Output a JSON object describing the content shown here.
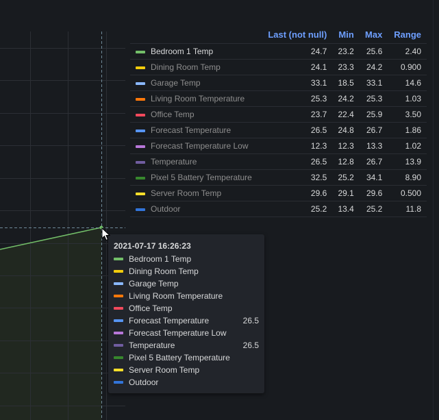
{
  "legend": {
    "headers": {
      "name": "",
      "last": "Last (not null)",
      "min": "Min",
      "max": "Max",
      "range": "Range"
    },
    "rows": [
      {
        "name": "Bedroom 1 Temp",
        "color": "#73bf69",
        "last": "24.7",
        "min": "23.2",
        "max": "25.6",
        "range": "2.40",
        "active": true
      },
      {
        "name": "Dining Room Temp",
        "color": "#f2cc0c",
        "last": "24.1",
        "min": "23.3",
        "max": "24.2",
        "range": "0.900",
        "active": false
      },
      {
        "name": "Garage Temp",
        "color": "#8ab8ff",
        "last": "33.1",
        "min": "18.5",
        "max": "33.1",
        "range": "14.6",
        "active": false
      },
      {
        "name": "Living Room Temperature",
        "color": "#ff780a",
        "last": "25.3",
        "min": "24.2",
        "max": "25.3",
        "range": "1.03",
        "active": false
      },
      {
        "name": "Office Temp",
        "color": "#f2495c",
        "last": "23.7",
        "min": "22.4",
        "max": "25.9",
        "range": "3.50",
        "active": false
      },
      {
        "name": "Forecast Temperature",
        "color": "#5794f2",
        "last": "26.5",
        "min": "24.8",
        "max": "26.7",
        "range": "1.86",
        "active": false
      },
      {
        "name": "Forecast Temperature Low",
        "color": "#b877d9",
        "last": "12.3",
        "min": "12.3",
        "max": "13.3",
        "range": "1.02",
        "active": false
      },
      {
        "name": "Temperature",
        "color": "#705da0",
        "last": "26.5",
        "min": "12.8",
        "max": "26.7",
        "range": "13.9",
        "active": false
      },
      {
        "name": "Pixel 5 Battery Temperature",
        "color": "#37872d",
        "last": "32.5",
        "min": "25.2",
        "max": "34.1",
        "range": "8.90",
        "active": false
      },
      {
        "name": "Server Room Temp",
        "color": "#fade2a",
        "last": "29.6",
        "min": "29.1",
        "max": "29.6",
        "range": "0.500",
        "active": false
      },
      {
        "name": "Outdoor",
        "color": "#3274d9",
        "last": "25.2",
        "min": "13.4",
        "max": "25.2",
        "range": "11.8",
        "active": false
      }
    ]
  },
  "tooltip": {
    "timestamp": "2021-07-17 16:26:23",
    "rows": [
      {
        "name": "Bedroom 1 Temp",
        "color": "#73bf69",
        "value": ""
      },
      {
        "name": "Dining Room Temp",
        "color": "#f2cc0c",
        "value": ""
      },
      {
        "name": "Garage Temp",
        "color": "#8ab8ff",
        "value": ""
      },
      {
        "name": "Living Room Temperature",
        "color": "#ff780a",
        "value": ""
      },
      {
        "name": "Office Temp",
        "color": "#f2495c",
        "value": ""
      },
      {
        "name": "Forecast Temperature",
        "color": "#5794f2",
        "value": "26.5"
      },
      {
        "name": "Forecast Temperature Low",
        "color": "#b877d9",
        "value": ""
      },
      {
        "name": "Temperature",
        "color": "#705da0",
        "value": "26.5"
      },
      {
        "name": "Pixel 5 Battery Temperature",
        "color": "#37872d",
        "value": ""
      },
      {
        "name": "Server Room Temp",
        "color": "#fade2a",
        "value": ""
      },
      {
        "name": "Outdoor",
        "color": "#3274d9",
        "value": ""
      }
    ]
  },
  "chart_data": {
    "type": "line",
    "title": "",
    "xlabel": "",
    "ylabel": "",
    "grid": true,
    "legend_position": "right-table",
    "legend_columns": [
      "Last (not null)",
      "Min",
      "Max",
      "Range"
    ],
    "series": [
      {
        "name": "Bedroom 1 Temp",
        "color": "#73bf69",
        "last": 24.7,
        "min": 23.2,
        "max": 25.6,
        "range": 2.4,
        "visible_segment": "rising line with filled area, ends at hover point"
      },
      {
        "name": "Dining Room Temp",
        "color": "#f2cc0c",
        "last": 24.1,
        "min": 23.3,
        "max": 24.2,
        "range": 0.9
      },
      {
        "name": "Garage Temp",
        "color": "#8ab8ff",
        "last": 33.1,
        "min": 18.5,
        "max": 33.1,
        "range": 14.6
      },
      {
        "name": "Living Room Temperature",
        "color": "#ff780a",
        "last": 25.3,
        "min": 24.2,
        "max": 25.3,
        "range": 1.03
      },
      {
        "name": "Office Temp",
        "color": "#f2495c",
        "last": 23.7,
        "min": 22.4,
        "max": 25.9,
        "range": 3.5
      },
      {
        "name": "Forecast Temperature",
        "color": "#5794f2",
        "last": 26.5,
        "min": 24.8,
        "max": 26.7,
        "range": 1.86
      },
      {
        "name": "Forecast Temperature Low",
        "color": "#b877d9",
        "last": 12.3,
        "min": 12.3,
        "max": 13.3,
        "range": 1.02
      },
      {
        "name": "Temperature",
        "color": "#705da0",
        "last": 26.5,
        "min": 12.8,
        "max": 26.7,
        "range": 13.9
      },
      {
        "name": "Pixel 5 Battery Temperature",
        "color": "#37872d",
        "last": 32.5,
        "min": 25.2,
        "max": 34.1,
        "range": 8.9
      },
      {
        "name": "Server Room Temp",
        "color": "#fade2a",
        "last": 29.6,
        "min": 29.1,
        "max": 29.6,
        "range": 0.5
      },
      {
        "name": "Outdoor",
        "color": "#3274d9",
        "last": 25.2,
        "min": 13.4,
        "max": 25.2,
        "range": 11.8
      }
    ],
    "hover": {
      "time": "2021-07-17 16:26:23",
      "values": {
        "Forecast Temperature": 26.5,
        "Temperature": 26.5
      }
    }
  }
}
